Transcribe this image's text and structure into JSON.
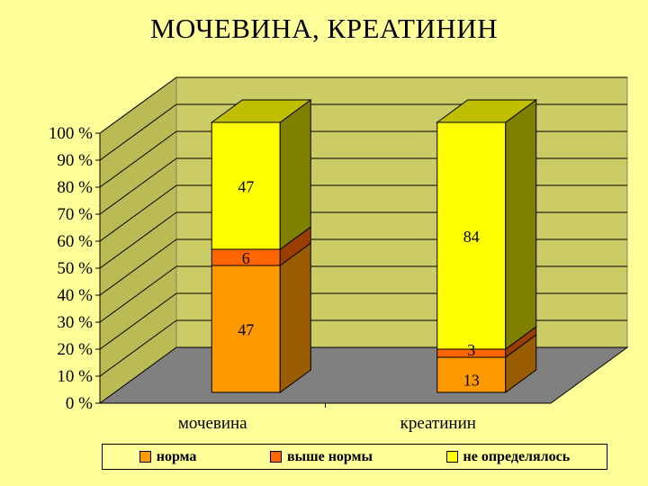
{
  "chart_data": {
    "type": "bar",
    "stacked": true,
    "percent": true,
    "three_d": true,
    "title": "МОЧЕВИНА, КРЕАТИНИН",
    "categories": [
      "мочевина",
      "креатинин"
    ],
    "series": [
      {
        "name": "норма",
        "values": [
          47,
          13
        ],
        "labels": [
          "47",
          "13"
        ],
        "color": "#FF9900",
        "side": "#995C00",
        "top": "#FFB040"
      },
      {
        "name": "выше нормы",
        "values": [
          6,
          3
        ],
        "labels": [
          "6",
          "3"
        ],
        "color": "#FF6600",
        "side": "#993D00",
        "top": "#FF8533"
      },
      {
        "name": "не определялось",
        "values": [
          47,
          84
        ],
        "labels": [
          "47",
          "84"
        ],
        "color": "#FFFF00",
        "side": "#808000",
        "top": "#BFBF00"
      }
    ],
    "yticks": [
      "0 %",
      "10 %",
      "20 %",
      "30 %",
      "40 %",
      "50 %",
      "60 %",
      "70 %",
      "80 %",
      "90 %",
      "100 %"
    ],
    "ylim": [
      0,
      100
    ],
    "grid": true,
    "legend_position": "bottom",
    "colors": {
      "background": "#FFFF99",
      "back_wall": "#CCCC66",
      "side_wall": "#BBBB55",
      "floor": "#808080"
    }
  }
}
